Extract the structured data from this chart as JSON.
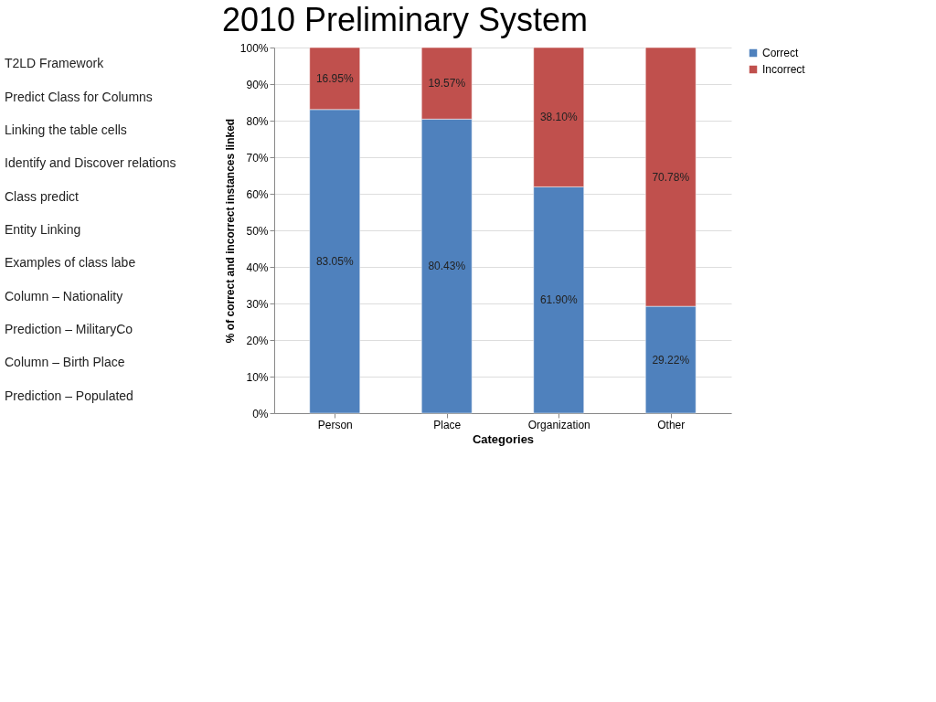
{
  "chart_data": {
    "type": "bar",
    "title": "2010 Preliminary System",
    "annotations": [
      "T2LD Framework",
      "Predict Class for Columns",
      "Linking the table cells",
      "Identify and Discover relations",
      "Class predict",
      "Entity Linking",
      "Examples of class labe",
      "Column – Nationality",
      "Prediction – MilitaryCo",
      "Column – Birth Place",
      "Prediction – Populated"
    ],
    "xlabel": "Categories",
    "ylabel": "% of correct and incorrect instances linked",
    "categories": [
      "Person",
      "Place",
      "Organization",
      "Other"
    ],
    "stacked": true,
    "series": [
      {
        "name": "Correct",
        "color": "#4f81bd",
        "values": [
          83.05,
          80.43,
          61.9,
          29.22
        ],
        "value_labels": [
          "83.05%",
          "80.43%",
          "61.90%",
          "29.22%"
        ]
      },
      {
        "name": "Incorrect",
        "color": "#c0504d",
        "values": [
          16.95,
          19.57,
          38.1,
          70.78
        ],
        "value_labels": [
          "16.95%",
          "19.57%",
          "38.10%",
          "70.78%"
        ]
      }
    ],
    "ylim": [
      0,
      100
    ],
    "yticks": [
      {
        "value": 0,
        "label": "0%"
      },
      {
        "value": 10,
        "label": "10%"
      },
      {
        "value": 20,
        "label": "20%"
      },
      {
        "value": 30,
        "label": "30%"
      },
      {
        "value": 40,
        "label": "40%"
      },
      {
        "value": 50,
        "label": "50%"
      },
      {
        "value": 60,
        "label": "60%"
      },
      {
        "value": 70,
        "label": "70%"
      },
      {
        "value": 80,
        "label": "80%"
      },
      {
        "value": 90,
        "label": "90%"
      },
      {
        "value": 100,
        "label": "100%"
      }
    ],
    "grid": "y",
    "legend": "right"
  }
}
